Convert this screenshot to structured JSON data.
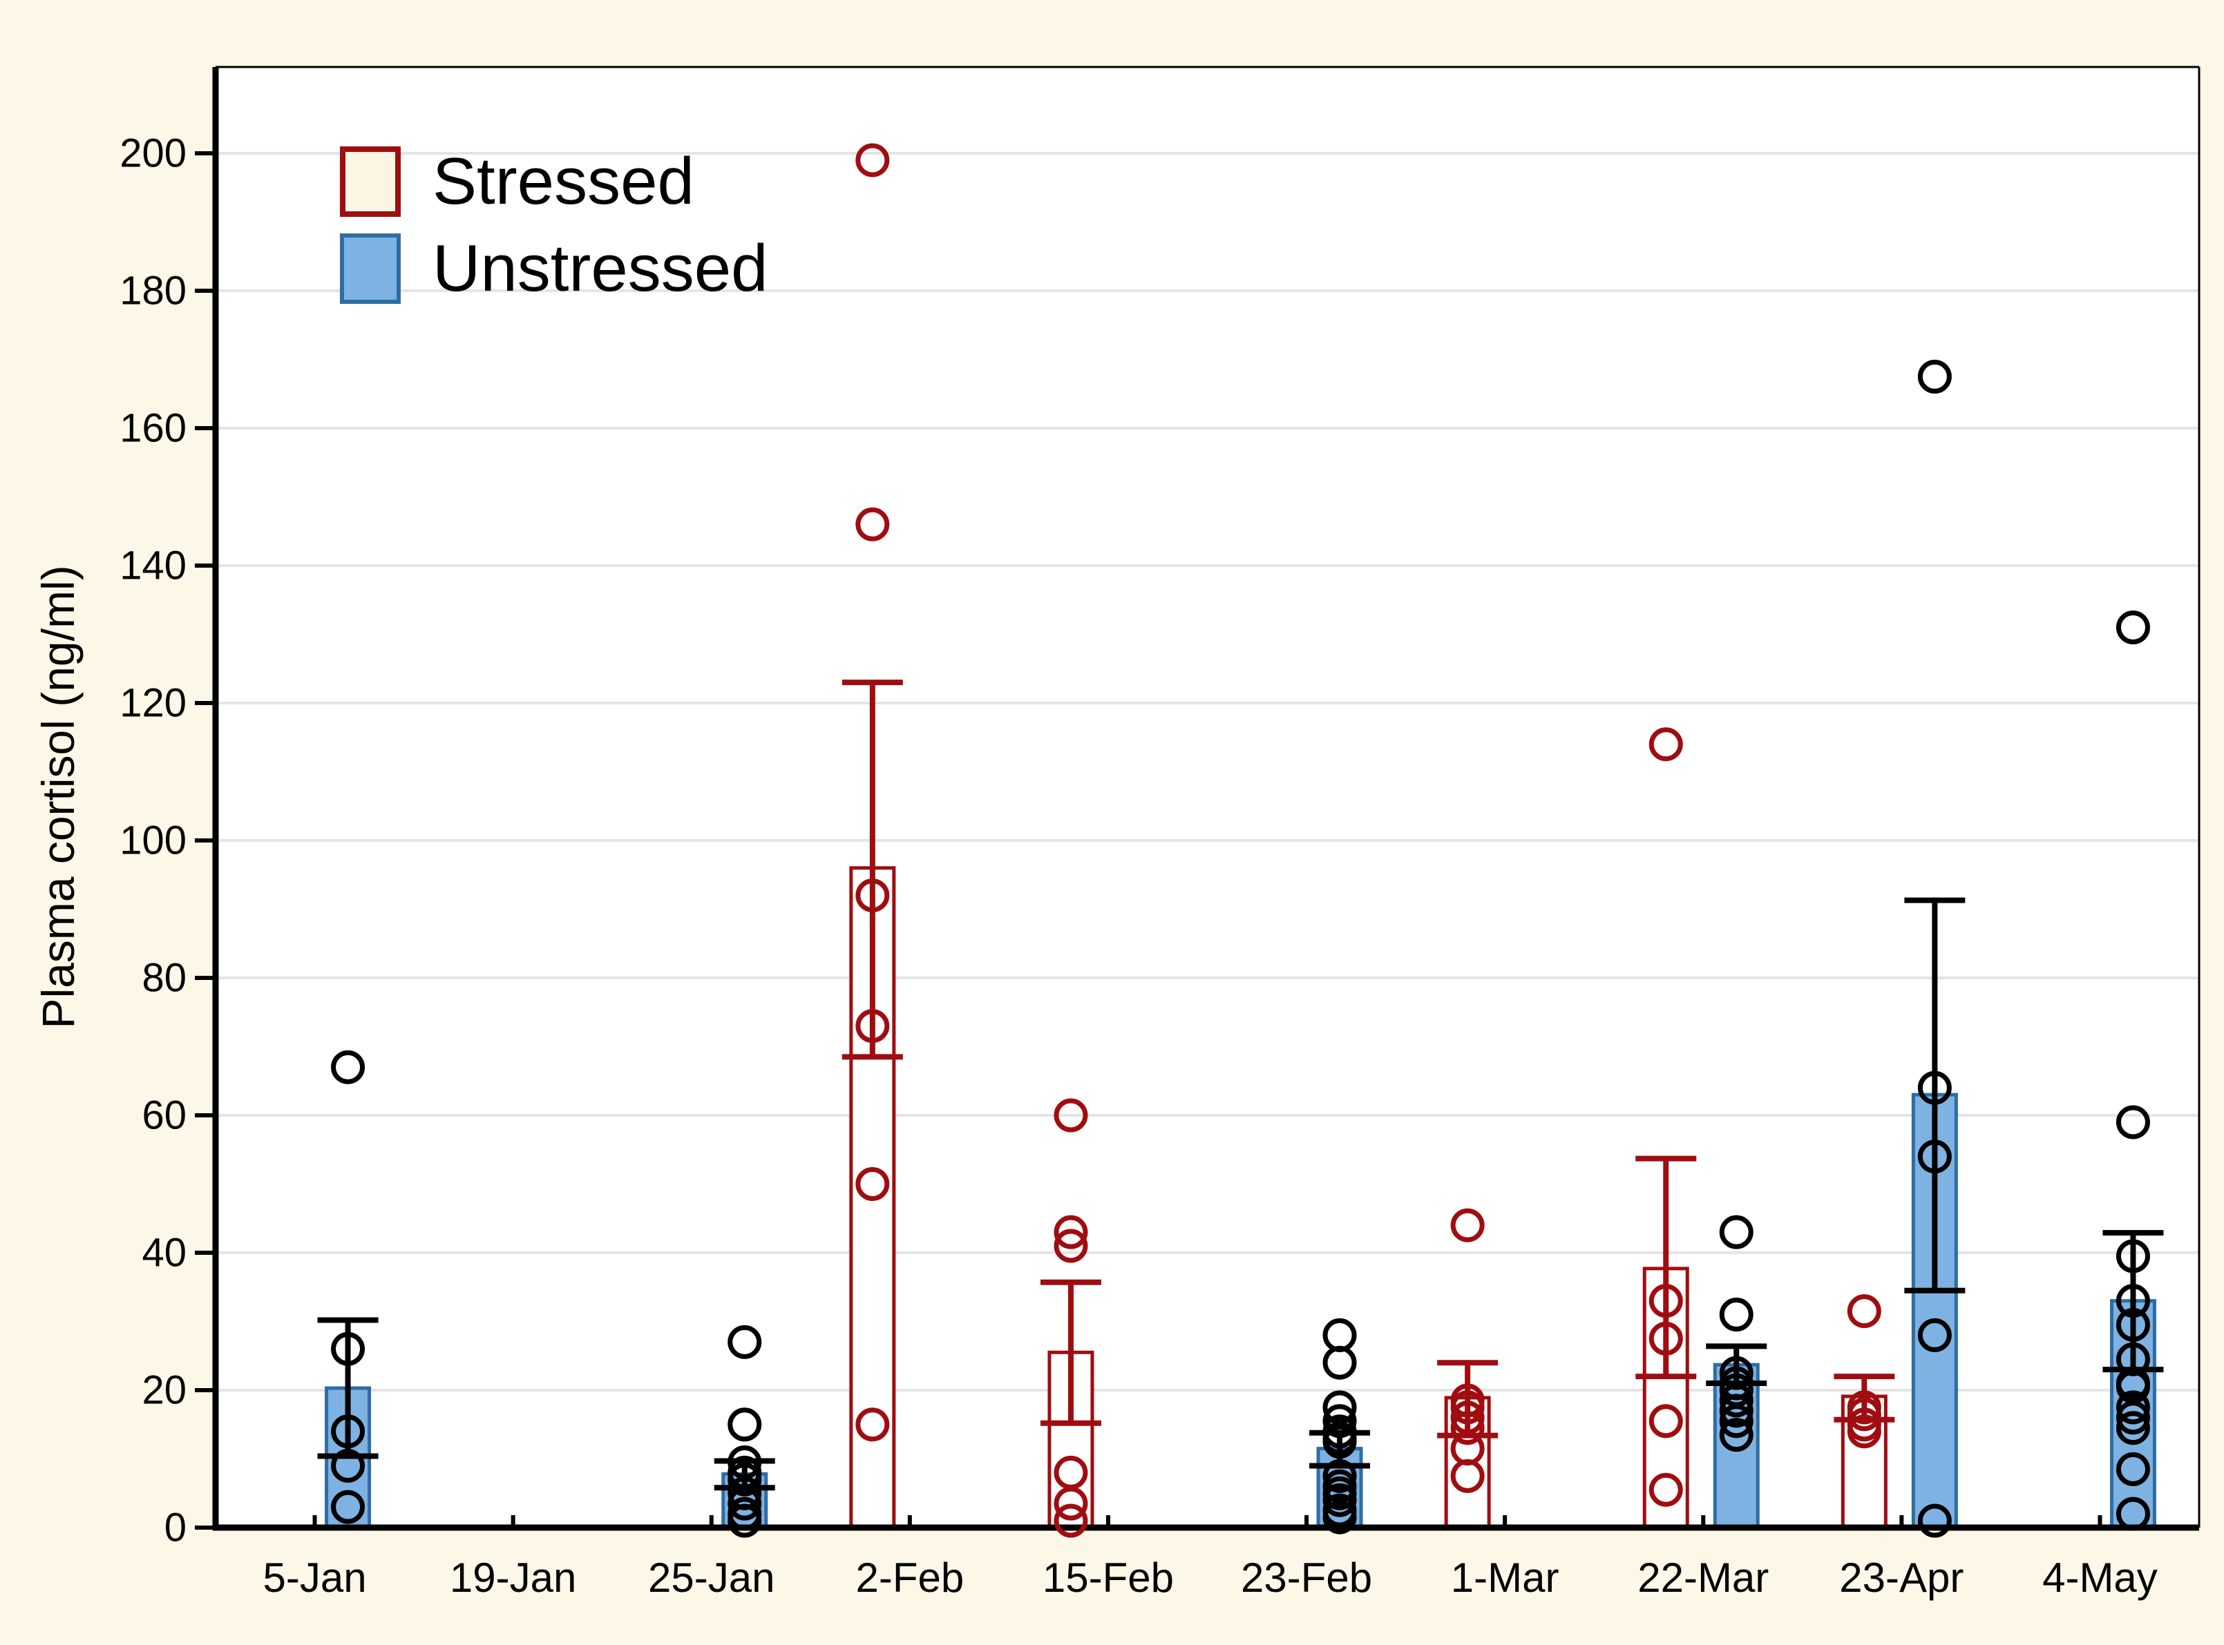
{
  "figure": {
    "background_color": "#FDF7E7",
    "plot_background_color": "#FFFFFF",
    "gridline_color": "#E4E4E4",
    "axis_color": "#000000"
  },
  "y_axis_title": "Plasma cortisol (ng/ml)",
  "legend": {
    "items": [
      {
        "label": "Stressed",
        "swatch_fill": "#FDF5E3",
        "swatch_border": "#A00D10"
      },
      {
        "label": "Unstressed",
        "swatch_fill": "#7EB2E2",
        "swatch_border": "#2E6DA3"
      }
    ]
  },
  "chart_data": {
    "type": "bar",
    "title": "",
    "xlabel": "",
    "ylabel": "Plasma cortisol (ng/ml)",
    "ylim": [
      0,
      210
    ],
    "yticks": [
      0,
      20,
      40,
      60,
      80,
      100,
      120,
      140,
      160,
      180,
      200
    ],
    "grid": "horizontal",
    "legend_position": "top-left-inside",
    "categories": [
      "5-Jan",
      "19-Jan",
      "25-Jan",
      "2-Feb",
      "15-Feb",
      "23-Feb",
      "1-Mar",
      "22-Mar",
      "23-Apr",
      "4-May"
    ],
    "series": [
      {
        "name": "Stressed",
        "color": "#A00D10",
        "bar_fill": "#FFFFFF",
        "bar_border": "#A00D10",
        "point_color": "#A00D10",
        "means": [
          null,
          null,
          null,
          96,
          25.5,
          null,
          18.9,
          37.7,
          19.1,
          null
        ],
        "err_low": [
          null,
          null,
          null,
          68.5,
          15.2,
          null,
          13.4,
          22.0,
          15.7,
          null
        ],
        "err_high": [
          null,
          null,
          null,
          123,
          35.7,
          null,
          24.0,
          53.7,
          22.0,
          null
        ],
        "points": [
          [],
          [],
          [],
          [
            199,
            146,
            92,
            73,
            50,
            15
          ],
          [
            60,
            43,
            41,
            8,
            3.5,
            1
          ],
          [],
          [
            44,
            18.5,
            17.5,
            16,
            14.5,
            11.5,
            7.5
          ],
          [
            114,
            33,
            27.5,
            15.5,
            5.5
          ],
          [
            31.5,
            17.5,
            16.5,
            15,
            14
          ],
          []
        ]
      },
      {
        "name": "Unstressed",
        "color": "#000000",
        "bar_fill": "#7EB2E2",
        "bar_border": "#2E6DA3",
        "point_color": "#000000",
        "means": [
          20.3,
          null,
          7.8,
          null,
          null,
          11.5,
          null,
          23.7,
          63,
          33
        ],
        "err_low": [
          10.4,
          null,
          5.8,
          null,
          null,
          9.0,
          null,
          21.0,
          34.5,
          23
        ],
        "err_high": [
          30.2,
          null,
          9.7,
          null,
          null,
          13.8,
          null,
          26.4,
          91.3,
          42.9
        ],
        "points": [
          [
            67,
            26,
            14,
            9,
            3
          ],
          [],
          [
            27,
            15,
            9.5,
            8,
            7,
            5,
            3.5,
            2,
            1
          ],
          [],
          [],
          [
            28,
            24,
            17.5,
            15.5,
            14,
            13,
            12.5,
            7.5,
            6,
            5,
            4,
            2.5,
            1.5
          ],
          [],
          [
            43,
            31,
            22.5,
            21,
            20,
            18.5,
            17,
            15.5,
            13.5
          ],
          [
            167.5,
            64,
            54,
            28,
            1
          ],
          [
            131,
            59,
            39.5,
            33,
            29.5,
            24.5,
            21,
            20.5,
            17.5,
            16,
            14.5,
            8.5,
            2
          ]
        ]
      }
    ]
  }
}
